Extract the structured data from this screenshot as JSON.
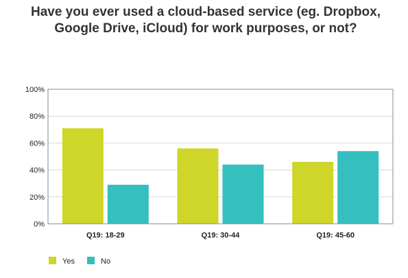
{
  "chart_data": {
    "type": "bar",
    "title": "Have you ever used a cloud-based service (eg. Dropbox, Google Drive, iCloud) for work purposes, or not?",
    "categories": [
      "Q19: 18-29",
      "Q19: 30-44",
      "Q19: 45-60"
    ],
    "series": [
      {
        "name": "Yes",
        "color": "#cdd629",
        "values": [
          71,
          56,
          46
        ]
      },
      {
        "name": "No",
        "color": "#35bfbf",
        "values": [
          29,
          44,
          54
        ]
      }
    ],
    "ylim": [
      0,
      100
    ],
    "yticks": [
      "0%",
      "20%",
      "40%",
      "60%",
      "80%",
      "100%"
    ],
    "grid": true,
    "legend_position": "bottom-left"
  },
  "colors": {
    "grid": "#d9d9d9",
    "axis": "#888888",
    "plot_background": "#ffffff"
  }
}
